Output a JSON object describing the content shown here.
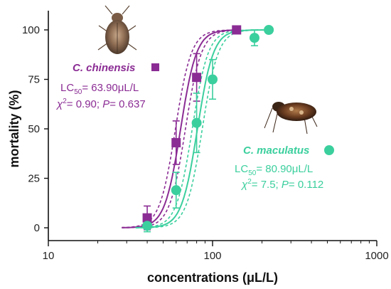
{
  "chart_data": {
    "type": "scatter",
    "xlabel": "concentrations (μL/L)",
    "ylabel": "mortality (%)",
    "x_scale": "log",
    "xlim": [
      10,
      1000
    ],
    "ylim": [
      -5,
      110
    ],
    "x_ticks": [
      10,
      100,
      1000
    ],
    "x_tick_labels": [
      "10",
      "100",
      "1000"
    ],
    "y_ticks": [
      0,
      25,
      50,
      75,
      100
    ],
    "y_tick_labels": [
      "0",
      "25",
      "50",
      "75",
      "100"
    ],
    "grid": false,
    "series": [
      {
        "name": "C. chinensis",
        "color": "#8b2c94",
        "marker": "square",
        "lc50": 63.9,
        "points": [
          {
            "x": 40,
            "y": 5,
            "err": 6
          },
          {
            "x": 60,
            "y": 43,
            "err": 11
          },
          {
            "x": 80,
            "y": 76,
            "err": 12
          },
          {
            "x": 140,
            "y": 100,
            "err": 0
          }
        ]
      },
      {
        "name": "C. maculatus",
        "color": "#3bcf9e",
        "marker": "circle",
        "lc50": 80.9,
        "points": [
          {
            "x": 40,
            "y": 1,
            "err": 3
          },
          {
            "x": 60,
            "y": 19,
            "err": 9
          },
          {
            "x": 80,
            "y": 53,
            "err": 15
          },
          {
            "x": 100,
            "y": 75,
            "err": 10
          },
          {
            "x": 180,
            "y": 96,
            "err": 4
          },
          {
            "x": 220,
            "y": 100,
            "err": 0
          }
        ]
      }
    ],
    "annotations": {
      "chinensis": {
        "name": "C. chinensis",
        "lc_prefix": "LC",
        "lc_sub": "50",
        "lc_value": "= 63.90μL/L",
        "chi_prefix": "χ",
        "chi_sup": "2",
        "chi_rest": "= 0.90; ",
        "p_label": "P",
        "p_value": "= 0.637"
      },
      "maculatus": {
        "name": "C. maculatus",
        "lc_prefix": "LC",
        "lc_sub": "50",
        "lc_value": "= 80.90μL/L",
        "chi_prefix": "χ",
        "chi_sup": "2",
        "chi_rest": "= 7.5; ",
        "p_label": "P",
        "p_value": "= 0.112"
      }
    }
  }
}
